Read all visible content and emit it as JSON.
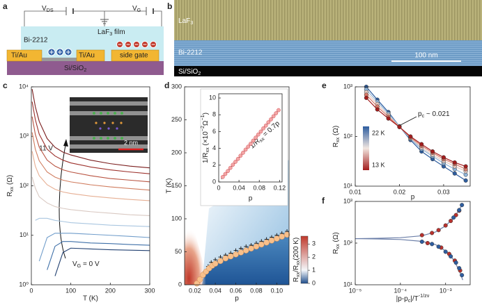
{
  "panel_labels": [
    "a",
    "b",
    "c",
    "d",
    "e",
    "f"
  ],
  "schematic": {
    "v_ds": [
      "V",
      {
        "sub": "DS"
      }
    ],
    "v_g": [
      "V",
      {
        "sub": "G"
      }
    ],
    "film": [
      "LaF",
      {
        "sub": "3"
      },
      " film"
    ],
    "flake": "Bi-2212",
    "contact_left": "Ti/Au",
    "contact_right": "Ti/Au",
    "gate": "side gate",
    "substrate": [
      "Si/SiO",
      {
        "sub": "2"
      }
    ]
  },
  "micrograph": {
    "top_layer": [
      "LaF",
      {
        "sub": "3"
      }
    ],
    "middle_layer": "Bi-2212",
    "substrate": [
      "Si/SiO",
      {
        "sub": "2"
      }
    ],
    "scale_bar": "100 nm"
  },
  "chart_data": [
    {
      "type": "line",
      "x": [
        2,
        10,
        20,
        40,
        60,
        80,
        100,
        150,
        200,
        250,
        300
      ],
      "xlim": [
        0,
        300
      ],
      "xticks": [
        0,
        100,
        200,
        300
      ],
      "ylim": [
        1,
        10000
      ],
      "yscale": "log",
      "yticks": [
        {
          "value": 1,
          "label": "10⁰"
        },
        {
          "value": 10,
          "label": "10¹"
        },
        {
          "value": 100,
          "label": "10²"
        },
        {
          "value": 1000,
          "label": "10³"
        },
        {
          "value": 10000,
          "label": "10⁴"
        }
      ],
      "xlabel": "T (K)",
      "ylabel": [
        "R",
        {
          "sub": "xx"
        },
        " (Ω)"
      ],
      "annotation_top": "11 V",
      "annotation_bottom": [
        "V",
        {
          "sub": "G"
        },
        " = 0 V"
      ],
      "inset_scale_bar": "2 nm",
      "series": [
        {
          "color": "#7a1c1c",
          "values": [
            9000,
            4000,
            2000,
            900,
            600,
            480,
            420,
            330,
            280,
            250,
            230
          ]
        },
        {
          "color": "#9c2f2a",
          "values": [
            5000,
            2200,
            1100,
            550,
            400,
            330,
            290,
            240,
            210,
            190,
            175
          ]
        },
        {
          "color": "#b8523f",
          "values": [
            2500,
            1100,
            600,
            330,
            250,
            210,
            190,
            160,
            140,
            130,
            120
          ]
        },
        {
          "color": "#d07c5e",
          "values": [
            1200,
            550,
            320,
            190,
            150,
            130,
            120,
            105,
            95,
            88,
            82
          ]
        },
        {
          "color": "#e6ae92",
          "values": [
            500,
            250,
            160,
            105,
            85,
            75,
            70,
            62,
            57,
            53,
            50
          ]
        },
        {
          "color": "#d9c9c2",
          "values": [
            150,
            90,
            60,
            45,
            38,
            35,
            33,
            30,
            28,
            26,
            25
          ]
        },
        {
          "color": "#a9c6e0",
          "values": [
            null,
            20,
            22,
            22,
            20,
            19,
            18,
            17,
            16,
            15.5,
            15
          ]
        },
        {
          "color": "#6f9cca",
          "values": [
            null,
            null,
            3,
            9,
            11,
            11,
            11,
            10.5,
            10,
            9.5,
            9
          ]
        },
        {
          "color": "#3f70a8",
          "values": [
            null,
            null,
            null,
            2,
            6,
            7.5,
            7.5,
            7,
            6.8,
            6.5,
            6.3
          ]
        },
        {
          "color": "#203f70",
          "values": [
            null,
            null,
            null,
            null,
            1.5,
            4.5,
            5.5,
            5.3,
            5.1,
            5,
            4.9
          ]
        }
      ]
    },
    {
      "type": "scatter",
      "xlim": [
        0.01,
        0.112
      ],
      "xticks": [
        0.02,
        0.04,
        0.06,
        0.08,
        {
          "value": 0.1,
          "label": "0.10"
        }
      ],
      "ylim": [
        0,
        300
      ],
      "yticks": [
        0,
        50,
        100,
        150,
        200,
        250,
        300
      ],
      "xlabel": "p",
      "ylabel": "T (K)",
      "colorbar": {
        "lim": [
          0,
          3.6
        ],
        "ticks": [
          0,
          1,
          2,
          3
        ],
        "label": [
          "R",
          {
            "sub": "xx"
          },
          "/R",
          {
            "sub": "xx"
          },
          "(200 K)"
        ]
      },
      "series": [
        {
          "marker": "plus",
          "line": false,
          "color": "#111111",
          "x": [
            0.03,
            0.033,
            0.036,
            0.04,
            0.045,
            0.05,
            0.055,
            0.06,
            0.065,
            0.07,
            0.075,
            0.08,
            0.085,
            0.09,
            0.095,
            0.1,
            0.105,
            0.11
          ],
          "values": [
            20,
            28,
            34,
            38,
            42,
            45,
            48,
            52,
            55,
            58,
            60,
            63,
            66,
            69,
            72,
            75,
            78,
            81
          ]
        },
        {
          "marker": "circle",
          "line": false,
          "color": "#f7c08c",
          "edge_color": "#d98b4a",
          "x": [
            0.022,
            0.025,
            0.028,
            0.031,
            0.034,
            0.037,
            0.04,
            0.045,
            0.05,
            0.055,
            0.06,
            0.065,
            0.07,
            0.075,
            0.08,
            0.085,
            0.09,
            0.095,
            0.1,
            0.105,
            0.11
          ],
          "values": [
            2,
            8,
            15,
            20,
            25,
            29,
            32,
            36,
            40,
            43,
            46,
            49,
            52,
            55,
            58,
            61,
            64,
            67,
            70,
            73,
            76
          ]
        }
      ]
    },
    {
      "type": "scatter",
      "xlim": [
        0,
        0.125
      ],
      "xticks": [
        0,
        0.04,
        0.08,
        0.12
      ],
      "ylim": [
        0,
        10.5
      ],
      "yticks": [
        0,
        2,
        4,
        6,
        8,
        10
      ],
      "xlabel": "p",
      "ylabel": [
        "1/R",
        {
          "sub": "xx"
        },
        " (×10",
        {
          "sup": "−2"
        },
        "Ω",
        {
          "sup": "−1"
        },
        ")"
      ],
      "annotation": [
        "1/R",
        {
          "sub": "xx"
        },
        " = 0.7p"
      ],
      "series": [
        {
          "marker": null,
          "line": true,
          "color": "#555555",
          "x": [
            0.005,
            0.12
          ],
          "values": [
            0.35,
            8.7
          ]
        },
        {
          "marker": "circle",
          "line": false,
          "color": "#f4a6a6",
          "edge_color": "#d0454a",
          "x": [
            0.008,
            0.013,
            0.018,
            0.023,
            0.028,
            0.033,
            0.038,
            0.043,
            0.048,
            0.053,
            0.058,
            0.063,
            0.068,
            0.073,
            0.078,
            0.083,
            0.088,
            0.093,
            0.098,
            0.103,
            0.108,
            0.113,
            0.118
          ],
          "values": [
            0.6,
            0.95,
            1.3,
            1.68,
            2.05,
            2.4,
            2.75,
            3.12,
            3.48,
            3.85,
            4.2,
            4.55,
            4.92,
            5.28,
            5.65,
            6.0,
            6.38,
            6.72,
            7.1,
            7.45,
            7.82,
            8.18,
            8.55
          ]
        }
      ]
    },
    {
      "type": "line",
      "x": [
        0.0125,
        0.015,
        0.0175,
        0.02,
        0.0225,
        0.025,
        0.0275,
        0.03,
        0.0325,
        0.035
      ],
      "xlim": [
        0.01,
        0.036
      ],
      "xticks": [
        0.01,
        0.02,
        0.03
      ],
      "ylim": [
        10,
        1000
      ],
      "yscale": "log",
      "yticks": [
        {
          "value": 10,
          "label": "10¹"
        },
        {
          "value": 100,
          "label": "10²"
        },
        {
          "value": 1000,
          "label": "10³"
        }
      ],
      "xlabel": "p",
      "ylabel": [
        "R",
        {
          "sub": "xx"
        },
        " (Ω)"
      ],
      "annotation": [
        "p",
        {
          "sub": "c"
        },
        " ~ 0.021"
      ],
      "colorbar": {
        "labels": [
          "22 K",
          "13 K"
        ]
      },
      "series": [
        {
          "marker": "circle",
          "color": "#2e5d9f",
          "values": [
            1000,
            550,
            310,
            160,
            85,
            50,
            35,
            25,
            18,
            13
          ]
        },
        {
          "marker": "circle",
          "color": "#8fb4d8",
          "values": [
            880,
            500,
            290,
            160,
            90,
            56,
            40,
            29,
            22,
            17
          ]
        },
        {
          "marker": "circle",
          "color": "#e3c9c0",
          "values": [
            780,
            450,
            270,
            158,
            93,
            60,
            43,
            32,
            25,
            20
          ]
        },
        {
          "marker": "circle",
          "color": "#d97a6a",
          "values": [
            690,
            400,
            250,
            156,
            96,
            65,
            47,
            35,
            28,
            22
          ]
        },
        {
          "marker": "circle",
          "color": "#a31d1d",
          "values": [
            600,
            350,
            230,
            155,
            100,
            70,
            50,
            38,
            30,
            25
          ]
        }
      ]
    },
    {
      "type": "line",
      "xlim": [
        1e-05,
        0.0035
      ],
      "xscale": "log",
      "xticks": [
        {
          "value": 1e-05,
          "label": "10⁻⁵"
        },
        {
          "value": 0.0001,
          "label": "10⁻⁴"
        },
        {
          "value": 0.001,
          "label": "10⁻³"
        }
      ],
      "ylim": [
        10,
        1000
      ],
      "yscale": "log",
      "yticks": [
        {
          "value": 10,
          "label": "10¹"
        },
        {
          "value": 100,
          "label": "10²"
        },
        {
          "value": 1000,
          "label": "10³"
        }
      ],
      "xlabel": [
        "|p-p",
        {
          "sub": "c"
        },
        "|/T",
        {
          "sup": "-1/zν"
        }
      ],
      "ylabel": [
        "R",
        {
          "sub": "xx"
        },
        " (Ω)"
      ],
      "series": [
        {
          "marker": null,
          "line": true,
          "color": "#6b7ea8",
          "x": [
            1e-05,
            3e-05,
            0.0001,
            0.0003,
            0.0006,
            0.001,
            0.0015,
            0.002,
            0.0024
          ],
          "values": [
            128,
            130,
            135,
            150,
            185,
            260,
            400,
            620,
            900
          ]
        },
        {
          "marker": null,
          "line": true,
          "color": "#6b7ea8",
          "x": [
            1e-05,
            3e-05,
            0.0001,
            0.0003,
            0.0006,
            0.001,
            0.0015,
            0.002,
            0.0024
          ],
          "values": [
            128,
            126,
            122,
            110,
            92,
            65,
            40,
            22,
            13
          ]
        },
        {
          "marker": "circle",
          "line": false,
          "color": "#b8322e",
          "x": [
            0.0003,
            0.0005,
            0.0007,
            0.001,
            0.0013,
            0.0017,
            0.002
          ],
          "values": [
            155,
            175,
            205,
            265,
            340,
            470,
            600
          ]
        },
        {
          "marker": "circle",
          "line": false,
          "color": "#b8322e",
          "x": [
            0.0004,
            0.0008,
            0.0012,
            0.0016,
            0.0021
          ],
          "values": [
            100,
            78,
            55,
            38,
            22
          ]
        },
        {
          "marker": "circle",
          "line": false,
          "color": "#2e5d9f",
          "x": [
            0.0003,
            0.0005,
            0.0007,
            0.001,
            0.0013,
            0.0017,
            0.002,
            0.0023
          ],
          "values": [
            108,
            95,
            82,
            62,
            48,
            34,
            25,
            17
          ]
        },
        {
          "marker": "circle",
          "line": false,
          "color": "#2e5d9f",
          "x": [
            0.0015,
            0.002,
            0.0023
          ],
          "values": [
            410,
            620,
            820
          ]
        }
      ]
    }
  ]
}
